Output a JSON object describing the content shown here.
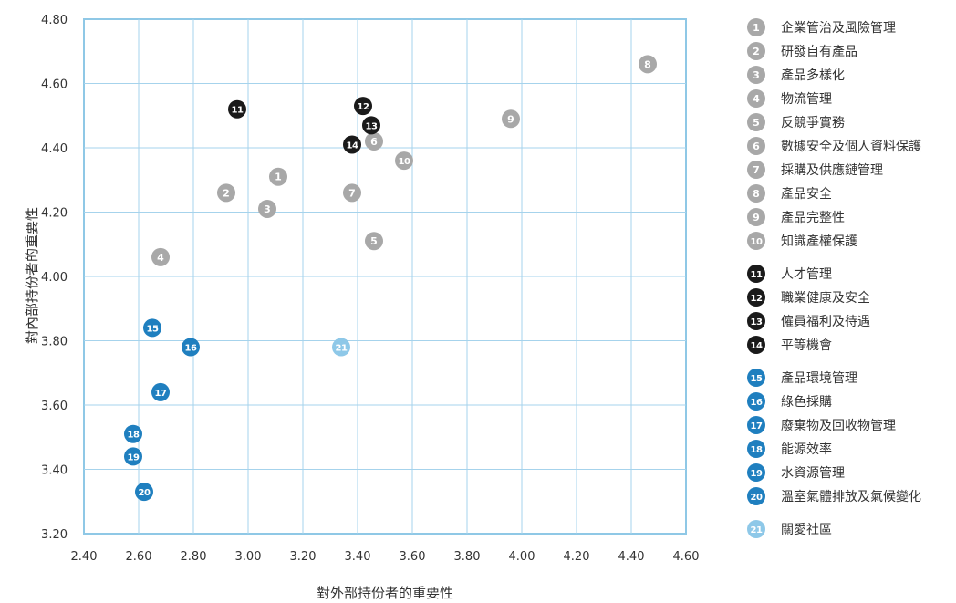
{
  "chart_data": {
    "type": "scatter",
    "title": "",
    "xlabel": "對外部持份者的重要性",
    "ylabel": "對內部持份者的重要性",
    "xlim": [
      2.4,
      4.6
    ],
    "ylim": [
      3.2,
      4.8
    ],
    "xticks": [
      "2.40",
      "2.60",
      "2.80",
      "3.00",
      "3.20",
      "3.40",
      "3.60",
      "3.80",
      "4.00",
      "4.20",
      "4.40",
      "4.60"
    ],
    "yticks": [
      "3.20",
      "3.40",
      "3.60",
      "3.80",
      "4.00",
      "4.20",
      "4.40",
      "4.60",
      "4.80"
    ],
    "grid": true,
    "legend_position": "right",
    "colors": {
      "grey": "#a8a8a8",
      "black": "#1a1a1a",
      "blue": "#1f7fbf",
      "lightblue": "#8ec8e8",
      "frame": "#8fc8e6",
      "grid": "#a6d3ec"
    },
    "points": [
      {
        "id": "1",
        "label": "企業管治及風險管理",
        "x": 3.11,
        "y": 4.31,
        "color": "grey"
      },
      {
        "id": "2",
        "label": "研發自有產品",
        "x": 2.92,
        "y": 4.26,
        "color": "grey"
      },
      {
        "id": "3",
        "label": "產品多樣化",
        "x": 3.07,
        "y": 4.21,
        "color": "grey"
      },
      {
        "id": "4",
        "label": "物流管理",
        "x": 2.68,
        "y": 4.06,
        "color": "grey"
      },
      {
        "id": "5",
        "label": "反競爭實務",
        "x": 3.46,
        "y": 4.11,
        "color": "grey"
      },
      {
        "id": "6",
        "label": "數據安全及個人資料保護",
        "x": 3.46,
        "y": 4.42,
        "color": "grey"
      },
      {
        "id": "7",
        "label": "採購及供應鏈管理",
        "x": 3.38,
        "y": 4.26,
        "color": "grey"
      },
      {
        "id": "8",
        "label": "產品安全",
        "x": 4.46,
        "y": 4.66,
        "color": "grey"
      },
      {
        "id": "9",
        "label": "產品完整性",
        "x": 3.96,
        "y": 4.49,
        "color": "grey"
      },
      {
        "id": "10",
        "label": "知識產權保護",
        "x": 3.57,
        "y": 4.36,
        "color": "grey"
      },
      {
        "id": "11",
        "label": "人才管理",
        "x": 2.96,
        "y": 4.52,
        "color": "black"
      },
      {
        "id": "12",
        "label": "職業健康及安全",
        "x": 3.42,
        "y": 4.53,
        "color": "black"
      },
      {
        "id": "13",
        "label": "僱員福利及待遇",
        "x": 3.45,
        "y": 4.47,
        "color": "black"
      },
      {
        "id": "14",
        "label": "平等機會",
        "x": 3.38,
        "y": 4.41,
        "color": "black"
      },
      {
        "id": "15",
        "label": "產品環境管理",
        "x": 2.65,
        "y": 3.84,
        "color": "blue"
      },
      {
        "id": "16",
        "label": "綠色採購",
        "x": 2.79,
        "y": 3.78,
        "color": "blue"
      },
      {
        "id": "17",
        "label": "廢棄物及回收物管理",
        "x": 2.68,
        "y": 3.64,
        "color": "blue"
      },
      {
        "id": "18",
        "label": "能源效率",
        "x": 2.58,
        "y": 3.51,
        "color": "blue"
      },
      {
        "id": "19",
        "label": "水資源管理",
        "x": 2.58,
        "y": 3.44,
        "color": "blue"
      },
      {
        "id": "20",
        "label": "溫室氣體排放及氣候變化",
        "x": 2.62,
        "y": 3.33,
        "color": "blue"
      },
      {
        "id": "21",
        "label": "關愛社區",
        "x": 3.34,
        "y": 3.78,
        "color": "lightblue"
      }
    ]
  }
}
